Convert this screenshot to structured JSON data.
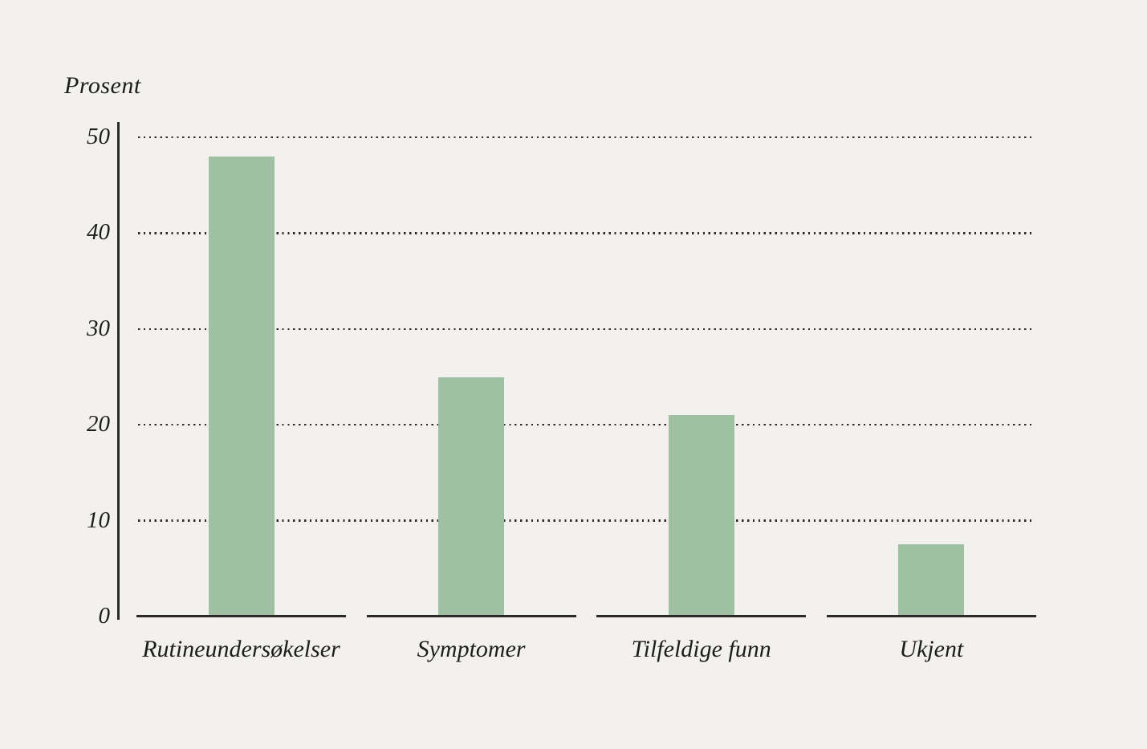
{
  "chart_data": {
    "type": "bar",
    "title": "",
    "ylabel": "Prosent",
    "xlabel": "",
    "categories": [
      "Rutineundersøkelser",
      "Symptomer",
      "Tilfeldige funn",
      "Ukjent"
    ],
    "values": [
      48,
      25,
      21,
      7.5
    ],
    "yticks": [
      0,
      10,
      20,
      30,
      40,
      50
    ],
    "ylim": [
      0,
      50
    ],
    "grid": "horizontal dotted lines at each y tick above zero",
    "legend": "none",
    "bar_color": "#a0c0a4",
    "background_color": "#f2f1ee",
    "axis_color": "#2a2a28",
    "text_color": "#1d1d1b"
  }
}
